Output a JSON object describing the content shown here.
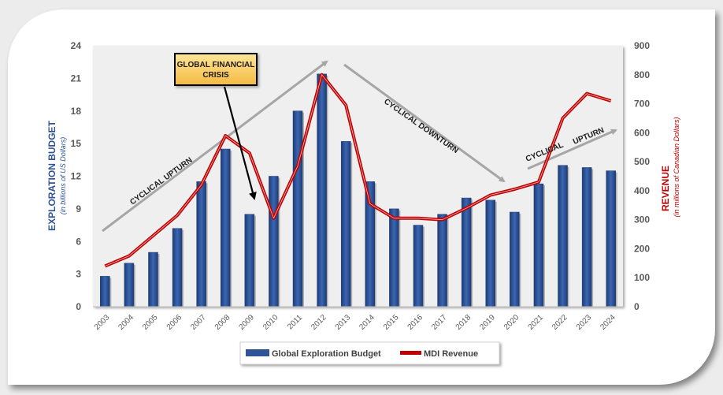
{
  "chart_data": {
    "type": "bar+line",
    "title": "",
    "categories": [
      "2003",
      "2004",
      "2005",
      "2006",
      "2007",
      "2008",
      "2009",
      "2010",
      "2011",
      "2012",
      "2013",
      "2014",
      "2015",
      "2016",
      "2017",
      "2018",
      "2019",
      "2020",
      "2021",
      "2022",
      "2023",
      "2024"
    ],
    "series": [
      {
        "name": "Global Exploration Budget",
        "type": "bar",
        "axis": "left",
        "color": "#2f5597",
        "values": [
          2.8,
          4.0,
          5.0,
          7.2,
          11.5,
          14.5,
          8.5,
          12.0,
          18.0,
          21.4,
          15.2,
          11.5,
          9.0,
          7.5,
          8.5,
          10.0,
          9.8,
          8.7,
          11.3,
          13.0,
          12.8,
          12.5
        ]
      },
      {
        "name": "MDI Revenue",
        "type": "line",
        "axis": "right",
        "color": "#c00000",
        "values": [
          140,
          175,
          245,
          315,
          420,
          590,
          530,
          305,
          485,
          800,
          695,
          355,
          305,
          305,
          300,
          340,
          385,
          405,
          430,
          650,
          735,
          710
        ]
      }
    ],
    "y_left": {
      "label": "EXPLORATION BUDGET",
      "sublabel": "(in billions of US Dollars)",
      "range": [
        0,
        24
      ],
      "ticks": [
        "0",
        "3",
        "6",
        "9",
        "12",
        "15",
        "18",
        "21",
        "24"
      ],
      "color": "#2f5597"
    },
    "y_right": {
      "label": "REVENUE",
      "sublabel": "(in millions of Canadian Dollars)",
      "range": [
        0,
        900
      ],
      "ticks": [
        "0",
        "100",
        "200",
        "300",
        "400",
        "500",
        "600",
        "700",
        "800",
        "900"
      ],
      "color": "#c00000"
    },
    "grid": false,
    "legend": {
      "position": "bottom",
      "entries": [
        "Global Exploration Budget",
        "MDI Revenue"
      ]
    },
    "annotations": {
      "callout": "GLOBAL FINANCIAL CRISIS",
      "callout_line1": "GLOBAL FINANCIAL",
      "callout_line2": "CRISIS",
      "callout_color": "#ffd966",
      "trend1": "CYCLICAL UPTURN",
      "trend2": "CYCLICAL DOWNTURN",
      "trend3a": "CYCLICAL",
      "trend3b": "UPTURN"
    }
  }
}
